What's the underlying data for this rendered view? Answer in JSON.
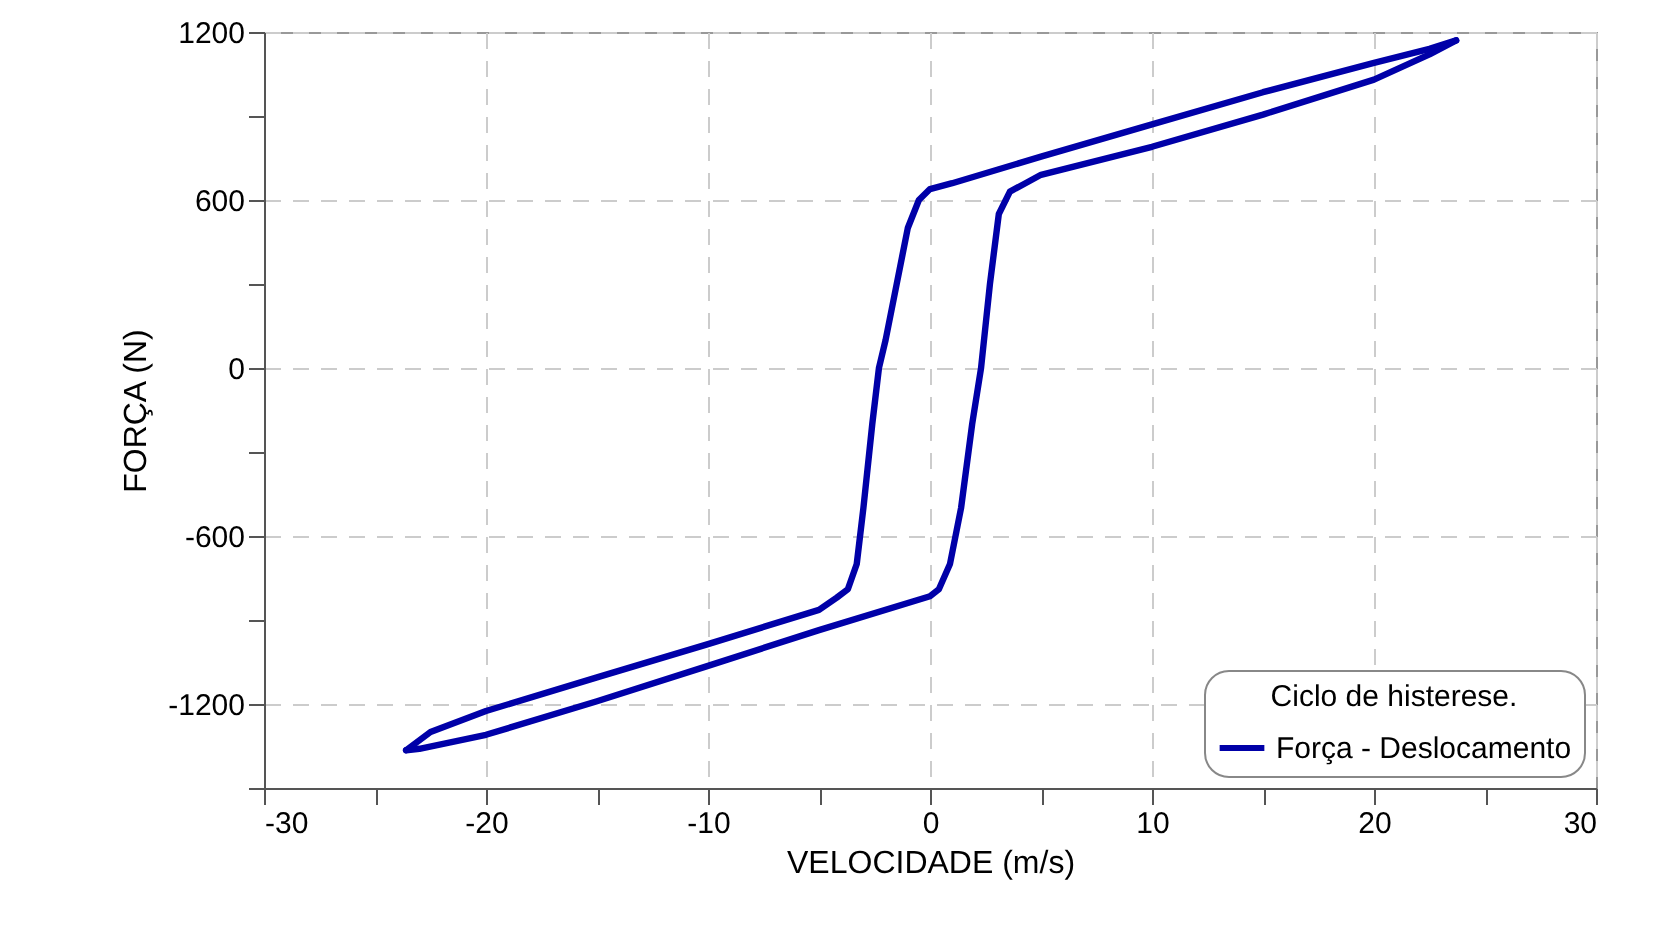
{
  "chart_data": {
    "type": "line",
    "xlabel": "VELOCIDADE (m/s)",
    "ylabel": "FORÇA (N)",
    "legend_title": "Ciclo de histerese.",
    "legend": "bottom right",
    "grid": true,
    "marker": "none",
    "line_style": "solid",
    "xlim": [
      -30,
      30
    ],
    "xticks": [
      -30,
      {
        "value": -25,
        "label": null
      },
      -20,
      {
        "value": -15,
        "label": null
      },
      -10,
      {
        "value": -5,
        "label": null
      },
      0,
      {
        "value": 5,
        "label": null
      },
      10,
      {
        "value": 15,
        "label": null
      },
      20,
      {
        "value": 25,
        "label": null
      },
      30
    ],
    "ylim": [
      -1500,
      1200
    ],
    "yticks": [
      {
        "value": -1500,
        "label": null
      },
      -1200,
      {
        "value": -900,
        "label": null
      },
      -600,
      {
        "value": -300,
        "label": null
      },
      0,
      {
        "value": 300,
        "label": null
      },
      600,
      {
        "value": 900,
        "label": null
      },
      1200
    ],
    "series": [
      {
        "name": "Força - Deslocamento",
        "color": "#0000a8",
        "x": [
          23.7,
          22.5,
          20,
          15,
          10,
          5,
          1,
          0,
          -0.5,
          -1,
          -1.5,
          -2,
          -2.3,
          -2.6,
          -3,
          -3.3,
          -3.7,
          -4.2,
          -5,
          -10,
          -15,
          -20,
          -22.5,
          -23.6,
          -23,
          -20,
          -15,
          -10,
          -5,
          0,
          0.4,
          0.9,
          1.4,
          1.9,
          2.3,
          2.7,
          3.1,
          3.6,
          4.3,
          5,
          10,
          15,
          20,
          22.5,
          23.7
        ],
        "values": [
          1170,
          1140,
          1090,
          985,
          870,
          755,
          660,
          639,
          600,
          500,
          300,
          100,
          0,
          -200,
          -500,
          -700,
          -790,
          -820,
          -864,
          -986,
          -1105,
          -1225,
          -1300,
          -1365,
          -1360,
          -1310,
          -1190,
          -1064,
          -936,
          -815,
          -790,
          -700,
          -500,
          -200,
          0,
          300,
          550,
          630,
          660,
          690,
          790,
          905,
          1030,
          1120,
          1170
        ]
      }
    ]
  }
}
